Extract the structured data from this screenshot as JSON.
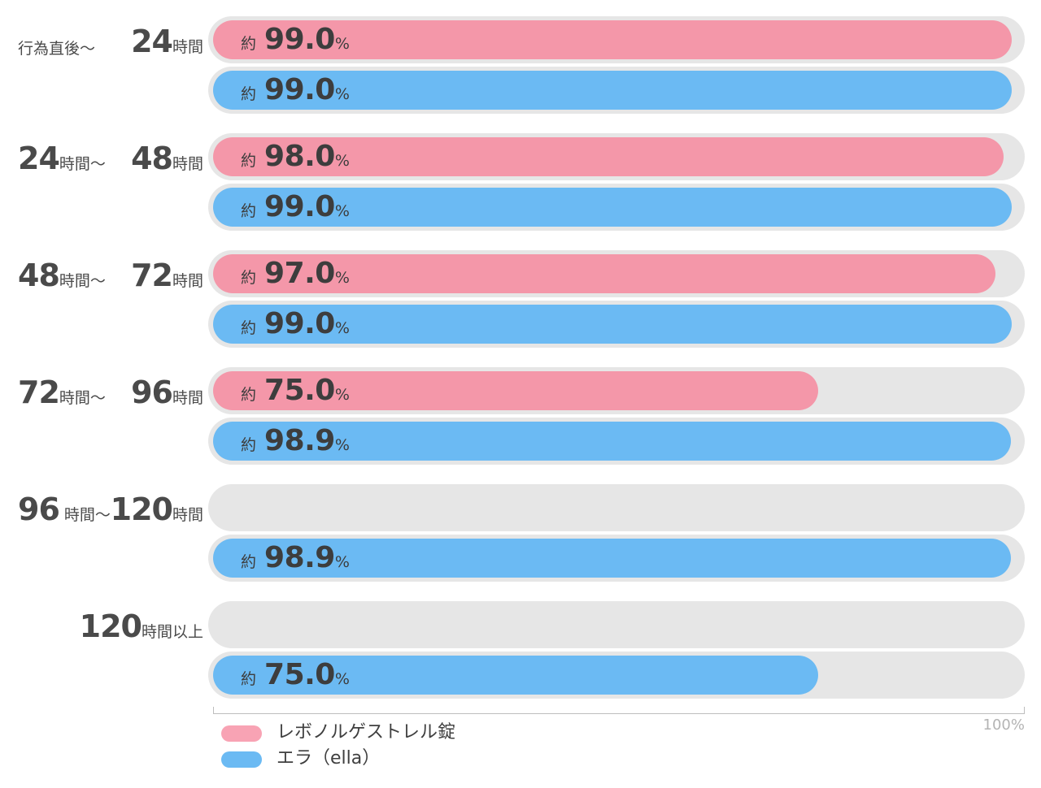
{
  "chart_data": {
    "type": "bar",
    "orientation": "horizontal",
    "x_max": 100,
    "axis_max_label": "100%",
    "value_prefix": "約",
    "value_unit": "%",
    "groups": [
      {
        "from": {
          "num": "",
          "unit": "行為直後〜"
        },
        "to": {
          "num": "24",
          "unit": "時間"
        },
        "values": [
          99.0,
          99.0
        ]
      },
      {
        "from": {
          "num": "24",
          "unit": "時間〜"
        },
        "to": {
          "num": "48",
          "unit": "時間"
        },
        "values": [
          98.0,
          99.0
        ]
      },
      {
        "from": {
          "num": "48",
          "unit": "時間〜"
        },
        "to": {
          "num": "72",
          "unit": "時間"
        },
        "values": [
          97.0,
          99.0
        ]
      },
      {
        "from": {
          "num": "72",
          "unit": "時間〜"
        },
        "to": {
          "num": "96",
          "unit": "時間"
        },
        "values": [
          75.0,
          98.9
        ]
      },
      {
        "from": {
          "num": "96",
          "unit": " 時間〜"
        },
        "to": {
          "num": "120",
          "unit": "時間"
        },
        "values": [
          null,
          98.9
        ]
      },
      {
        "from": {
          "num": "",
          "unit": ""
        },
        "to": {
          "num": "120",
          "unit": "時間以上"
        },
        "values": [
          null,
          75.0
        ]
      }
    ],
    "series": [
      {
        "name": "レボノルゲストレル錠",
        "bar_color": "#f497a9",
        "legend_color": "#f8a3b4"
      },
      {
        "name": "エラ（ella）",
        "bar_color": "#6bbaf3",
        "legend_color": "#6bbaf3"
      }
    ],
    "track_color": "#e6e6e6",
    "legend_position": "bottom-left"
  }
}
